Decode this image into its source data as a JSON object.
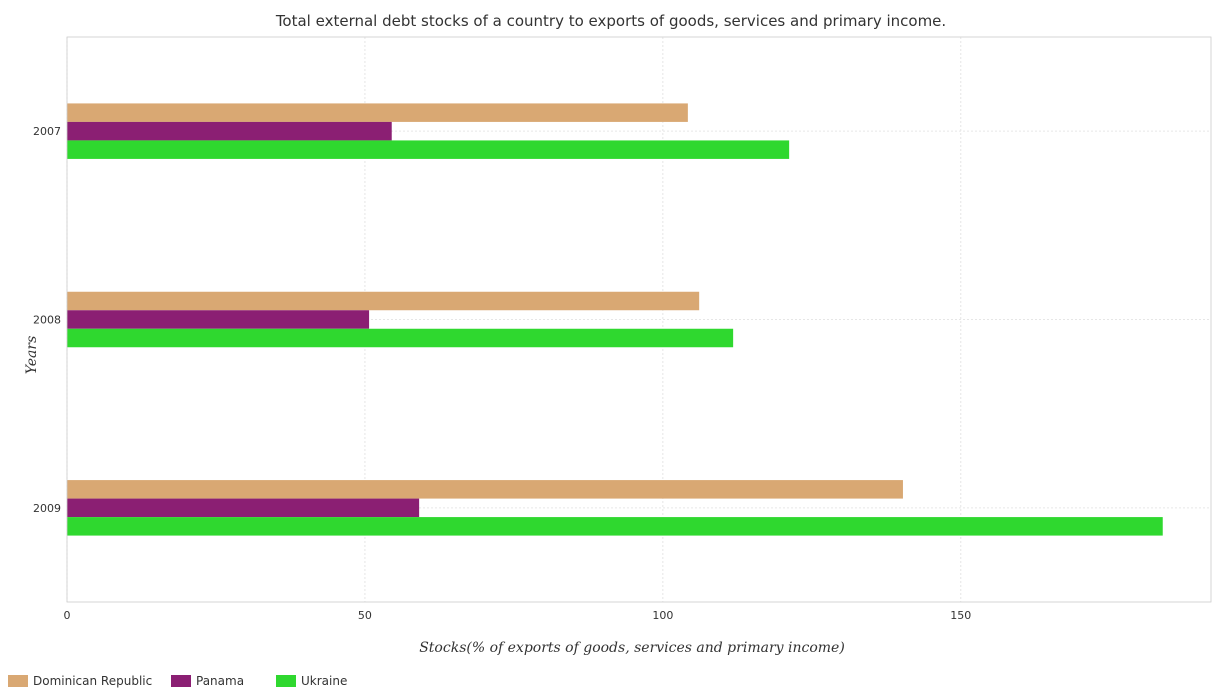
{
  "chart_data": {
    "type": "bar",
    "orientation": "horizontal",
    "title": "Total external debt stocks of a country to exports of goods, services and primary income.",
    "xlabel": "Stocks(% of exports of goods, services and primary income)",
    "ylabel": "Years",
    "categories": [
      "2007",
      "2008",
      "2009"
    ],
    "xlim": [
      0,
      192
    ],
    "xticks": [
      0,
      50,
      100,
      150
    ],
    "grid": true,
    "legend_position": "bottom-left",
    "series": [
      {
        "name": "Dominican Republic",
        "color": "#d9a873",
        "values": [
          104.2,
          106.1,
          140.3
        ]
      },
      {
        "name": "Panama",
        "color": "#8b1f73",
        "values": [
          54.5,
          50.7,
          59.1
        ]
      },
      {
        "name": "Ukraine",
        "color": "#2fd82f",
        "values": [
          121.2,
          111.8,
          183.9
        ]
      }
    ]
  }
}
